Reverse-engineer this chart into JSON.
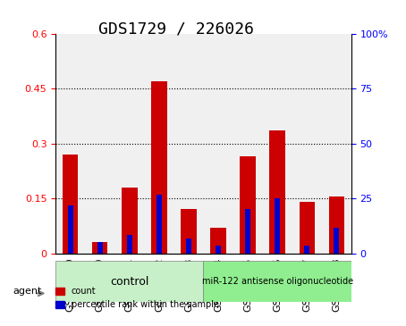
{
  "title": "GDS1729 / 226026",
  "samples": [
    "GSM83090",
    "GSM83100",
    "GSM83101",
    "GSM83102",
    "GSM83103",
    "GSM83104",
    "GSM83105",
    "GSM83106",
    "GSM83107",
    "GSM83108"
  ],
  "red_values": [
    0.27,
    0.03,
    0.18,
    0.47,
    0.12,
    0.07,
    0.265,
    0.335,
    0.14,
    0.155
  ],
  "blue_values": [
    0.13,
    0.03,
    0.05,
    0.16,
    0.04,
    0.02,
    0.12,
    0.15,
    0.02,
    0.07
  ],
  "red_color": "#cc0000",
  "blue_color": "#0000cc",
  "ylim_left": [
    0,
    0.6
  ],
  "ylim_right": [
    0,
    100
  ],
  "yticks_left": [
    0,
    0.15,
    0.3,
    0.45,
    0.6
  ],
  "yticks_right": [
    0,
    25,
    50,
    75,
    100
  ],
  "control_samples": [
    "GSM83090",
    "GSM83100",
    "GSM83101",
    "GSM83102",
    "GSM83103"
  ],
  "treatment_samples": [
    "GSM83104",
    "GSM83105",
    "GSM83106",
    "GSM83107",
    "GSM83108"
  ],
  "control_label": "control",
  "treatment_label": "miR-122 antisense oligonucleotide",
  "agent_label": "agent",
  "legend_count": "count",
  "legend_percentile": "percentile rank within the sample",
  "bar_width": 0.35,
  "bg_color": "#f0f0f0",
  "group_bg_control": "#c8f0c8",
  "group_bg_treatment": "#90ee90",
  "title_fontsize": 13,
  "tick_fontsize": 8,
  "label_fontsize": 9
}
